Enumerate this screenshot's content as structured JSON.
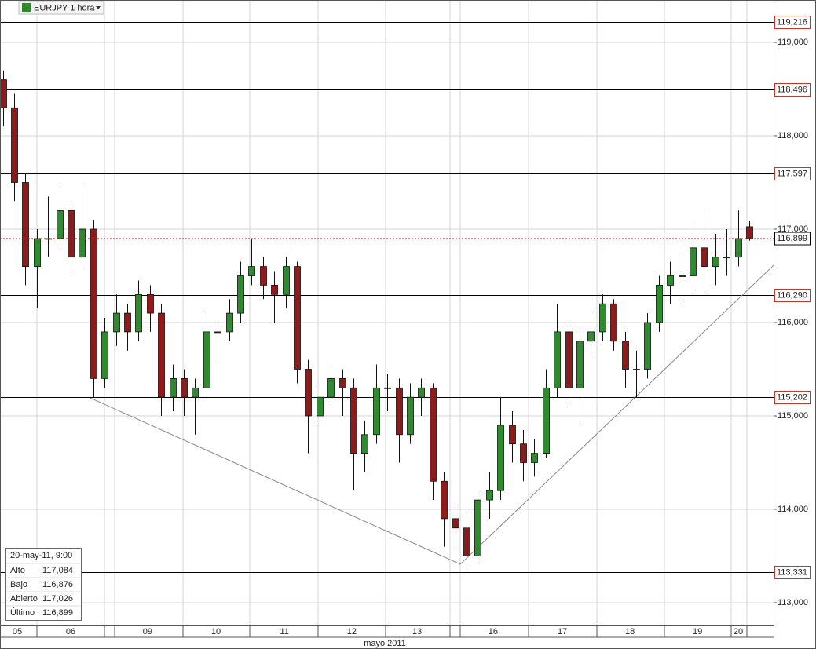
{
  "chart_data": {
    "type": "candlestick",
    "title": "EURJPY 1 hora",
    "x_axis_label": "mayo 2011",
    "xlim": [
      0,
      273.6
    ],
    "xticks": [
      {
        "value": 6.1,
        "label": "05"
      },
      {
        "value": 25,
        "label": "06"
      },
      {
        "value": 52.2,
        "label": "09"
      },
      {
        "value": 76.4,
        "label": "10"
      },
      {
        "value": 100.6,
        "label": "11"
      },
      {
        "value": 124.4,
        "label": "12"
      },
      {
        "value": 147.5,
        "label": "13"
      },
      {
        "value": 174.4,
        "label": "16"
      },
      {
        "value": 198.9,
        "label": "17"
      },
      {
        "value": 222.8,
        "label": "18"
      },
      {
        "value": 246.7,
        "label": "19"
      },
      {
        "value": 261.1,
        "label": "20"
      }
    ],
    "ylim": [
      112.756,
      119.454
    ],
    "yticks": [
      {
        "value": 113,
        "label": "113,000"
      },
      {
        "value": 114,
        "label": "114,000"
      },
      {
        "value": 115,
        "label": "115,000"
      },
      {
        "value": 116,
        "label": "116,000"
      },
      {
        "value": 117,
        "label": "117,000"
      },
      {
        "value": 118,
        "label": "118,000"
      },
      {
        "value": 119,
        "label": "119,000"
      }
    ],
    "grid": true,
    "up_color": "#2f8a2f",
    "down_color": "#8c1c1c",
    "x": [
      1,
      5,
      9,
      13,
      17,
      21,
      25,
      29,
      33,
      37,
      41,
      45,
      49,
      53,
      57,
      61,
      65,
      69,
      73,
      77,
      81,
      85,
      89,
      93,
      97,
      101,
      105,
      109,
      113,
      117,
      121,
      125,
      129,
      133,
      137,
      141,
      145,
      149,
      153,
      157,
      161,
      165,
      169,
      173,
      177,
      181,
      185,
      189,
      193,
      197,
      201,
      205,
      209,
      213,
      217,
      221,
      225,
      229,
      233,
      237,
      241,
      245,
      249,
      253,
      257,
      261,
      265
    ],
    "open": [
      118.6,
      118.3,
      117.5,
      116.6,
      116.9,
      116.9,
      117.2,
      116.7,
      117.0,
      115.4,
      115.9,
      116.1,
      115.9,
      116.3,
      116.1,
      115.2,
      115.4,
      115.2,
      115.3,
      115.9,
      115.9,
      116.1,
      116.5,
      116.6,
      116.4,
      116.3,
      116.6,
      115.5,
      115.0,
      115.2,
      115.4,
      115.3,
      114.6,
      114.8,
      115.3,
      115.3,
      114.8,
      115.2,
      115.3,
      114.3,
      113.9,
      113.8,
      113.5,
      114.1,
      114.2,
      114.9,
      114.7,
      114.5,
      114.6,
      115.3,
      115.9,
      115.3,
      115.8,
      115.9,
      116.2,
      115.8,
      115.5,
      115.5,
      116.0,
      116.4,
      116.5,
      116.5,
      116.8,
      116.6,
      116.7,
      116.7,
      117.026
    ],
    "high": [
      118.7,
      118.45,
      117.6,
      117.0,
      117.35,
      117.45,
      117.3,
      117.5,
      117.1,
      116.05,
      116.3,
      116.2,
      116.45,
      116.4,
      116.2,
      115.55,
      115.5,
      115.4,
      116.1,
      116.0,
      116.25,
      116.65,
      116.9,
      116.7,
      116.55,
      116.7,
      116.65,
      115.6,
      115.35,
      115.55,
      115.5,
      115.4,
      114.95,
      115.55,
      115.45,
      115.4,
      115.35,
      115.4,
      115.35,
      114.4,
      114.05,
      113.95,
      114.2,
      114.4,
      115.2,
      115.05,
      114.85,
      114.75,
      115.5,
      116.2,
      116.0,
      115.95,
      116.1,
      116.3,
      116.25,
      115.9,
      115.7,
      116.1,
      116.5,
      116.65,
      116.7,
      117.1,
      117.2,
      116.95,
      117.0,
      117.2,
      117.084
    ],
    "low": [
      118.1,
      117.3,
      116.4,
      116.15,
      116.7,
      116.8,
      116.5,
      116.6,
      115.2,
      115.3,
      115.75,
      115.7,
      115.8,
      115.9,
      115.0,
      115.05,
      115.0,
      114.8,
      115.2,
      115.6,
      115.8,
      116.0,
      116.4,
      116.25,
      116.0,
      116.15,
      115.35,
      114.6,
      114.9,
      115.1,
      115.0,
      114.2,
      114.4,
      114.7,
      115.05,
      114.5,
      114.7,
      115.0,
      114.1,
      113.6,
      113.55,
      113.35,
      113.45,
      113.9,
      114.1,
      114.5,
      114.3,
      114.35,
      114.55,
      115.2,
      115.1,
      114.9,
      115.65,
      115.8,
      115.7,
      115.3,
      115.2,
      115.4,
      115.9,
      116.2,
      116.2,
      116.3,
      116.3,
      116.4,
      116.5,
      116.6,
      116.876
    ],
    "close": [
      118.3,
      117.5,
      116.6,
      116.9,
      116.9,
      117.2,
      116.7,
      117.0,
      115.4,
      115.9,
      116.1,
      115.9,
      116.3,
      116.1,
      115.2,
      115.4,
      115.2,
      115.3,
      115.9,
      115.9,
      116.1,
      116.5,
      116.6,
      116.4,
      116.3,
      116.6,
      115.5,
      115.0,
      115.2,
      115.4,
      115.3,
      114.6,
      114.8,
      115.3,
      115.3,
      114.8,
      115.2,
      115.3,
      114.3,
      113.9,
      113.8,
      113.5,
      114.1,
      114.2,
      114.9,
      114.7,
      114.5,
      114.6,
      115.3,
      115.9,
      115.3,
      115.8,
      115.9,
      116.2,
      115.8,
      115.5,
      115.5,
      116.0,
      116.4,
      116.5,
      116.5,
      116.8,
      116.6,
      116.7,
      116.7,
      116.9,
      116.899
    ],
    "levels": [
      {
        "value": 119.216,
        "label": "119,216"
      },
      {
        "value": 118.496,
        "label": "118,496"
      },
      {
        "value": 117.597,
        "label": "117,597"
      },
      {
        "value": 116.29,
        "label": "116,290"
      },
      {
        "value": 115.202,
        "label": "115,202"
      },
      {
        "value": 113.331,
        "label": "113,331"
      }
    ],
    "level_color": "#c0392b",
    "last_price": {
      "value": 116.899,
      "label": "116,899"
    },
    "trendlines": [
      {
        "x": [
          31.9,
          162.8
        ],
        "y": [
          115.193,
          113.412
        ]
      },
      {
        "x": [
          162.8,
          273.6
        ],
        "y": [
          113.412,
          116.613
        ]
      }
    ],
    "info": {
      "date": "20-may-11, 9:00",
      "rows": [
        {
          "label": "Alto",
          "value": "117,084"
        },
        {
          "label": "Bajo",
          "value": "116,876"
        },
        {
          "label": "Abierto",
          "value": "117,026"
        },
        {
          "label": "Último",
          "value": "116,899"
        }
      ]
    }
  }
}
